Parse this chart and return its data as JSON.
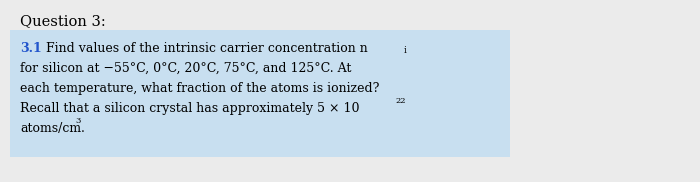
{
  "title": "Question 3:",
  "title_color": "#000000",
  "title_fontsize": 11.5,
  "background_color": "#c8dff0",
  "outer_background": "#f0f0f0",
  "number_color": "#2255cc",
  "number_text": "3.1",
  "body_fontsize": 10.5,
  "body_color": "#000000",
  "line1_prefix": "3.1",
  "line1_body": " Find values of the intrinsic carrier concentration ",
  "line1_end": "n",
  "line1_sub": "i",
  "line2": "for silicon at −55°C, 0°C, 20°C, 75°C, and 125°C. At",
  "line3": "each temperature, what fraction of the atoms is ionized?",
  "line4": "Recall that a silicon crystal has approximately 5 × 10",
  "line4_sup": "22",
  "line5": "atoms/cm",
  "line5_sup": "3",
  "line5_end": ".",
  "fig_width": 7.0,
  "fig_height": 1.82,
  "dpi": 100
}
